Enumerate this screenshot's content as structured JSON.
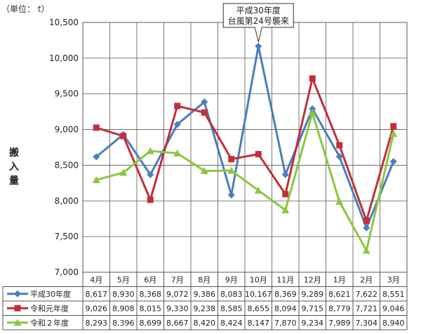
{
  "unit_label": "（単位： t）",
  "ylabel_chars": [
    "搬",
    "入",
    "量"
  ],
  "annotation": {
    "line1": "平成30年度",
    "line2": "台風第24号襲来"
  },
  "chart_data": {
    "type": "line",
    "categories": [
      "4月",
      "5月",
      "6月",
      "7月",
      "8月",
      "9月",
      "10月",
      "11月",
      "12月",
      "1月",
      "2月",
      "3月"
    ],
    "ylim": [
      7000,
      10500
    ],
    "yticks": [
      7000,
      7500,
      8000,
      8500,
      9000,
      9500,
      10000,
      10500
    ],
    "ytick_labels": [
      "7,000",
      "7,500",
      "8,000",
      "8,500",
      "9,000",
      "9,500",
      "10,000",
      "10,500"
    ],
    "grid": true,
    "legend": "bottom-table",
    "series": [
      {
        "name": "平成30年度",
        "color": "#4a7ebb",
        "marker": "diamond",
        "values": [
          8617,
          8930,
          8368,
          9072,
          9386,
          8083,
          10167,
          8369,
          9289,
          8621,
          7622,
          8551
        ],
        "labels": [
          "8,617",
          "8,930",
          "8,368",
          "9,072",
          "9,386",
          "8,083",
          "10,167",
          "8,369",
          "9,289",
          "8,621",
          "7,622",
          "8,551"
        ]
      },
      {
        "name": "令和元年度",
        "color": "#c0303a",
        "marker": "square",
        "values": [
          9026,
          8908,
          8015,
          9330,
          9238,
          8585,
          8655,
          8094,
          9715,
          8779,
          7721,
          9046
        ],
        "labels": [
          "9,026",
          "8,908",
          "8,015",
          "9,330",
          "9,238",
          "8,585",
          "8,655",
          "8,094",
          "9,715",
          "8,779",
          "7,721",
          "9,046"
        ]
      },
      {
        "name": "令和２年度",
        "color": "#8cc63f",
        "marker": "triangle",
        "values": [
          8293,
          8396,
          8699,
          8667,
          8420,
          8424,
          8147,
          7870,
          9234,
          7989,
          7304,
          8940
        ],
        "labels": [
          "8,293",
          "8,396",
          "8,699",
          "8,667",
          "8,420",
          "8,424",
          "8,147",
          "7,870",
          "9,234",
          "7,989",
          "7,304",
          "8,940"
        ]
      }
    ]
  }
}
